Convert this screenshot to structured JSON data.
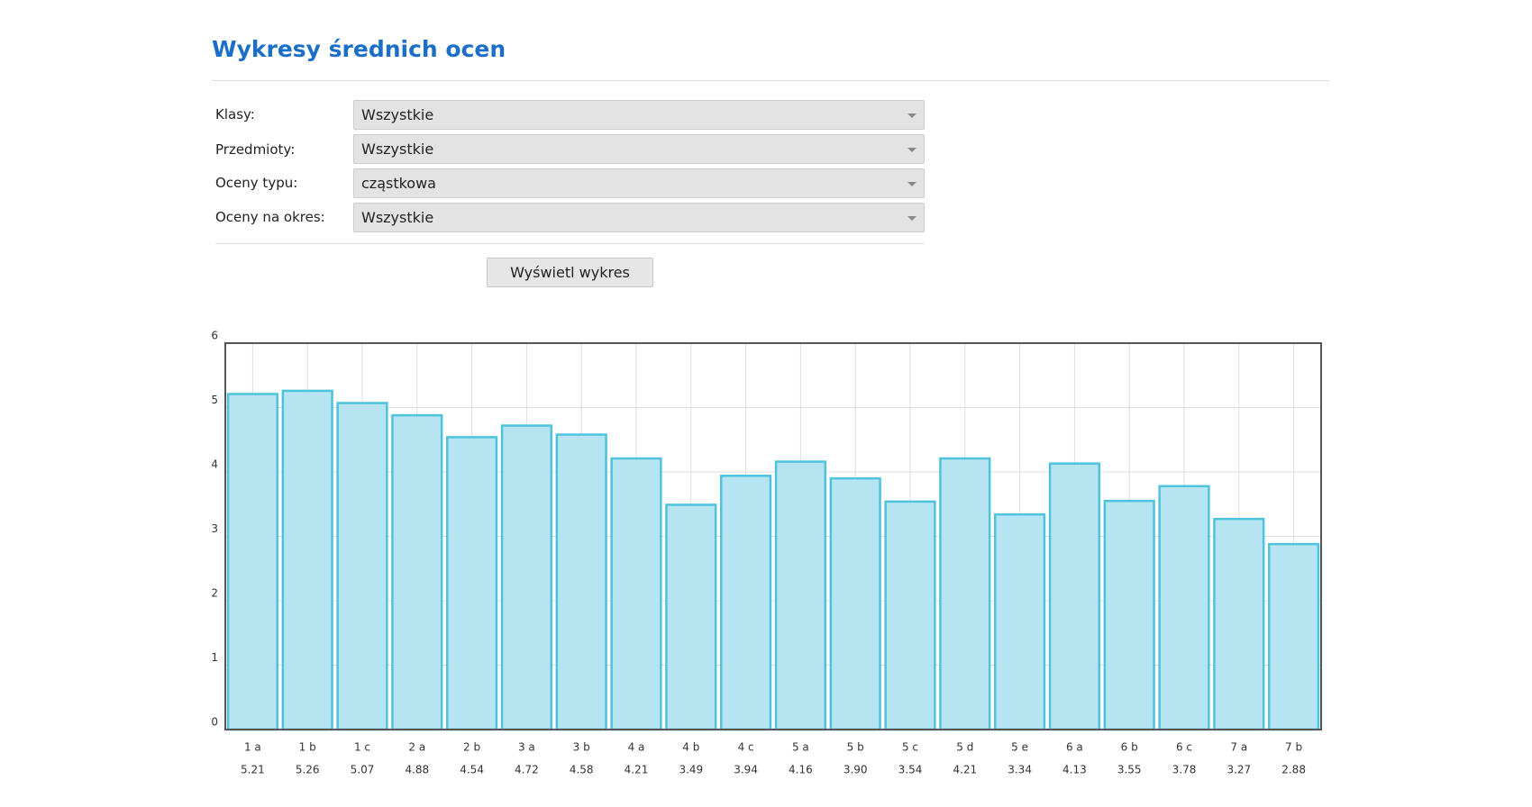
{
  "header": {
    "title": "Wykresy średnich ocen"
  },
  "form": {
    "fields": [
      {
        "label": "Klasy:",
        "value": "Wszystkie"
      },
      {
        "label": "Przedmioty:",
        "value": "Wszystkie"
      },
      {
        "label": "Oceny typu:",
        "value": "cząstkowa"
      },
      {
        "label": "Oceny na okres:",
        "value": "Wszystkie"
      }
    ],
    "button": "Wyświetl wykres"
  },
  "chart_data": {
    "type": "bar",
    "categories": [
      "1 a",
      "1 b",
      "1 c",
      "2 a",
      "2 b",
      "3 a",
      "3 b",
      "4 a",
      "4 b",
      "4 c",
      "5 a",
      "5 b",
      "5 c",
      "5 d",
      "5 e",
      "6 a",
      "6 b",
      "6 c",
      "7 a",
      "7 b"
    ],
    "values": [
      5.21,
      5.26,
      5.07,
      4.88,
      4.54,
      4.72,
      4.58,
      4.21,
      3.49,
      3.94,
      4.16,
      3.9,
      3.54,
      4.21,
      3.34,
      4.13,
      3.55,
      3.78,
      3.27,
      2.88
    ],
    "value_labels": [
      "5.21",
      "5.26",
      "5.07",
      "4.88",
      "4.54",
      "4.72",
      "4.58",
      "4.21",
      "3.49",
      "3.94",
      "4.16",
      "3.90",
      "3.54",
      "4.21",
      "3.34",
      "4.13",
      "3.55",
      "3.78",
      "3.27",
      "2.88"
    ],
    "color": "#b3e3f0",
    "edge_color": "#4fc3dd",
    "ylim": [
      0,
      6
    ],
    "yticks": [
      0,
      1,
      2,
      3,
      4,
      5,
      6
    ],
    "grid": true
  }
}
